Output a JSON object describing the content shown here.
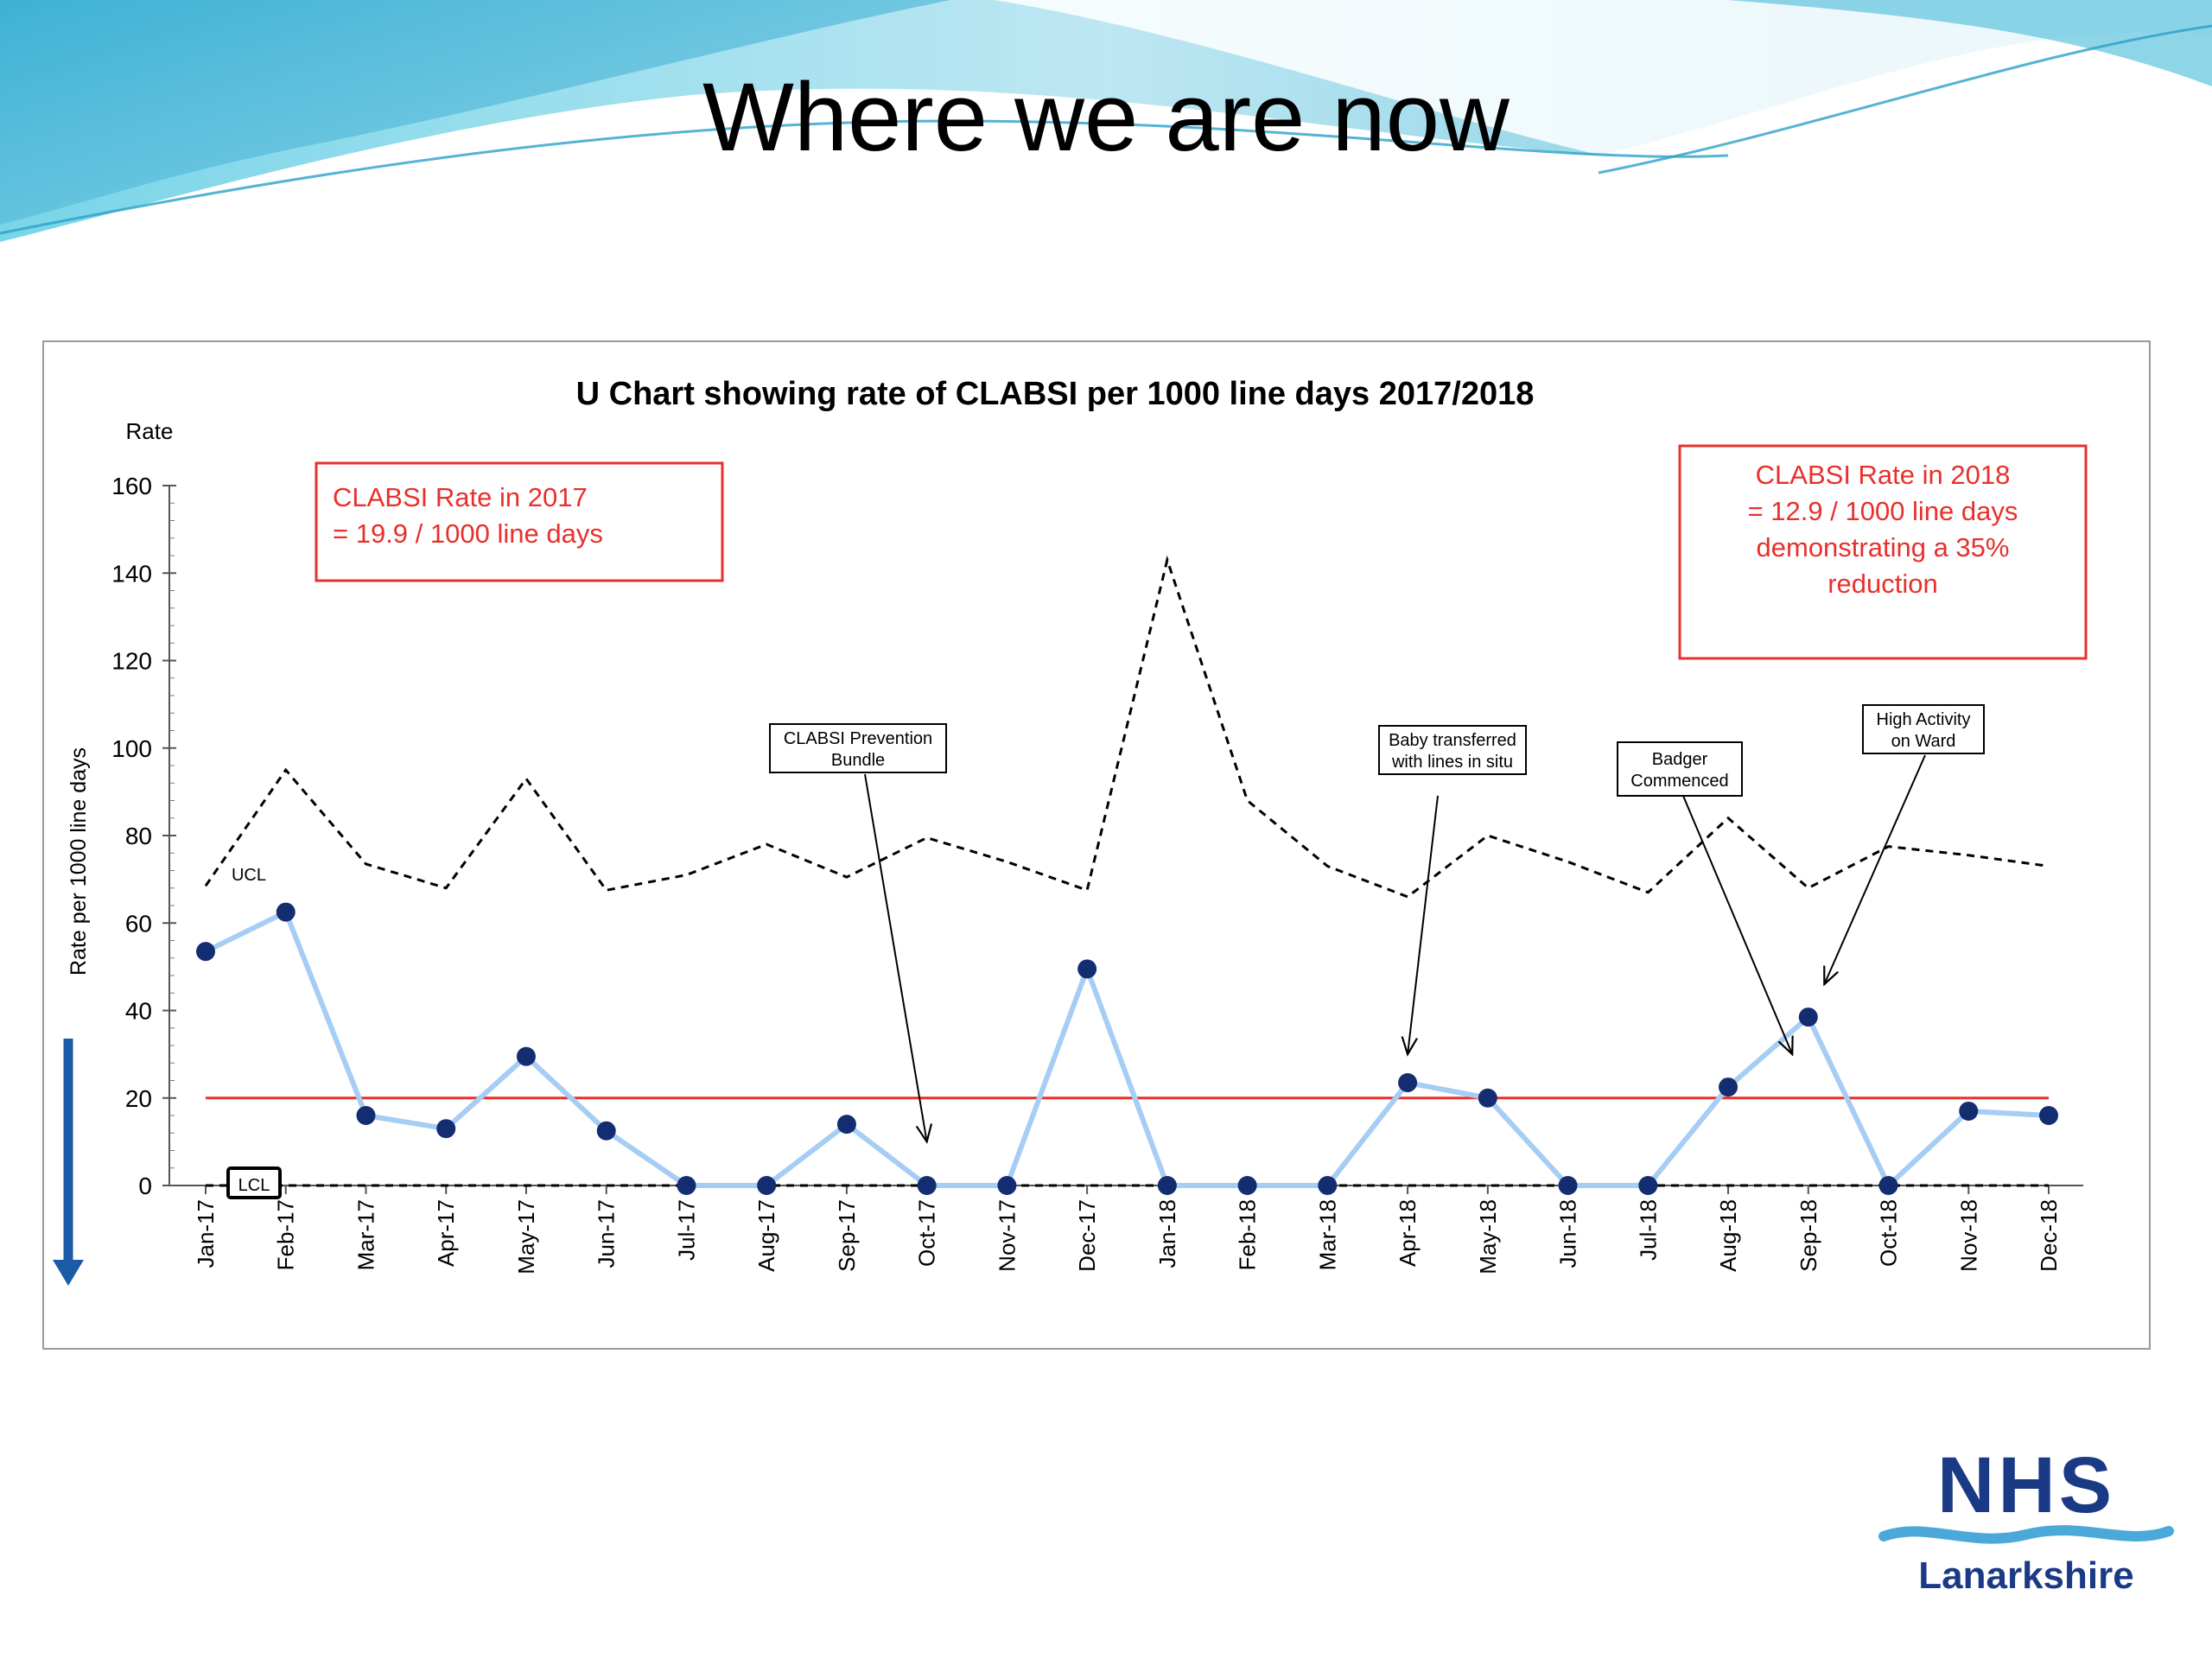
{
  "slide": {
    "title": "Where we are now"
  },
  "chart_data": {
    "type": "line",
    "title": "U Chart showing rate of CLABSI per 1000 line days 2017/2018",
    "ylabel": "Rate per 1000 line days",
    "ylabel_top": "Rate",
    "ylim": [
      0,
      160
    ],
    "yticks": [
      0,
      20,
      40,
      60,
      80,
      100,
      120,
      140,
      160
    ],
    "categories": [
      "Jan-17",
      "Feb-17",
      "Mar-17",
      "Apr-17",
      "May-17",
      "Jun-17",
      "Jul-17",
      "Aug-17",
      "Sep-17",
      "Oct-17",
      "Nov-17",
      "Dec-17",
      "Jan-18",
      "Feb-18",
      "Mar-18",
      "Apr-18",
      "May-18",
      "Jun-18",
      "Jul-18",
      "Aug-18",
      "Sep-18",
      "Oct-18",
      "Nov-18",
      "Dec-18"
    ],
    "series": [
      {
        "key": "rate",
        "values": [
          53.5,
          62.5,
          16,
          13,
          29.5,
          12.5,
          0,
          0,
          14,
          0,
          0,
          49.5,
          0,
          0,
          0,
          23.5,
          20,
          0,
          0,
          22.5,
          38.5,
          0,
          17,
          16
        ],
        "color": "#a6cdf3",
        "marker_color": "#142c70"
      },
      {
        "key": "ucl",
        "name": "UCL",
        "values": [
          68.5,
          95,
          73.5,
          68,
          93,
          67.5,
          71,
          78,
          70.5,
          79.5,
          74,
          67.5,
          143,
          88,
          73,
          66,
          80,
          74,
          67,
          84,
          68,
          77.5,
          75.5,
          73
        ],
        "color": "#000000"
      },
      {
        "key": "lcl",
        "name": "LCL",
        "values": [
          0,
          0,
          0,
          0,
          0,
          0,
          0,
          0,
          0,
          0,
          0,
          0,
          0,
          0,
          0,
          0,
          0,
          0,
          0,
          0,
          0,
          0,
          0,
          0
        ],
        "color": "#000000"
      },
      {
        "key": "mean",
        "values": [
          20,
          20,
          20,
          20,
          20,
          20,
          20,
          20,
          20,
          20,
          20,
          20,
          20,
          20,
          20,
          20,
          20,
          20,
          20,
          20,
          20,
          20,
          20,
          20
        ],
        "color": "#e8302c"
      }
    ],
    "annotations": [
      {
        "lines": [
          "CLABSI Prevention",
          "Bundle"
        ],
        "target_index": 9,
        "target_value": 10
      },
      {
        "lines": [
          "Baby transferred",
          "with lines in situ"
        ],
        "target_index": 15,
        "target_value": 30
      },
      {
        "lines": [
          "Badger",
          "Commenced"
        ],
        "target_index": 19.8,
        "target_value": 30
      },
      {
        "lines": [
          "High Activity",
          "on Ward"
        ],
        "target_index": 20.2,
        "target_value": 46
      }
    ],
    "info_boxes": [
      {
        "lines": [
          "CLABSI Rate in 2017",
          "= 19.9 / 1000 line days"
        ]
      },
      {
        "lines": [
          "CLABSI Rate in 2018",
          "= 12.9 / 1000 line days",
          "demonstrating a 35%",
          "reduction"
        ]
      }
    ],
    "colors": {
      "title": "#000000",
      "info_text": "#e8302c",
      "info_border": "#e8302c",
      "trend_arrow": "#1a5aa6"
    }
  },
  "logo": {
    "main": "NHS",
    "sub": "Lanarkshire",
    "color": "#1a3a86",
    "wave_color": "#4aa9d8"
  }
}
